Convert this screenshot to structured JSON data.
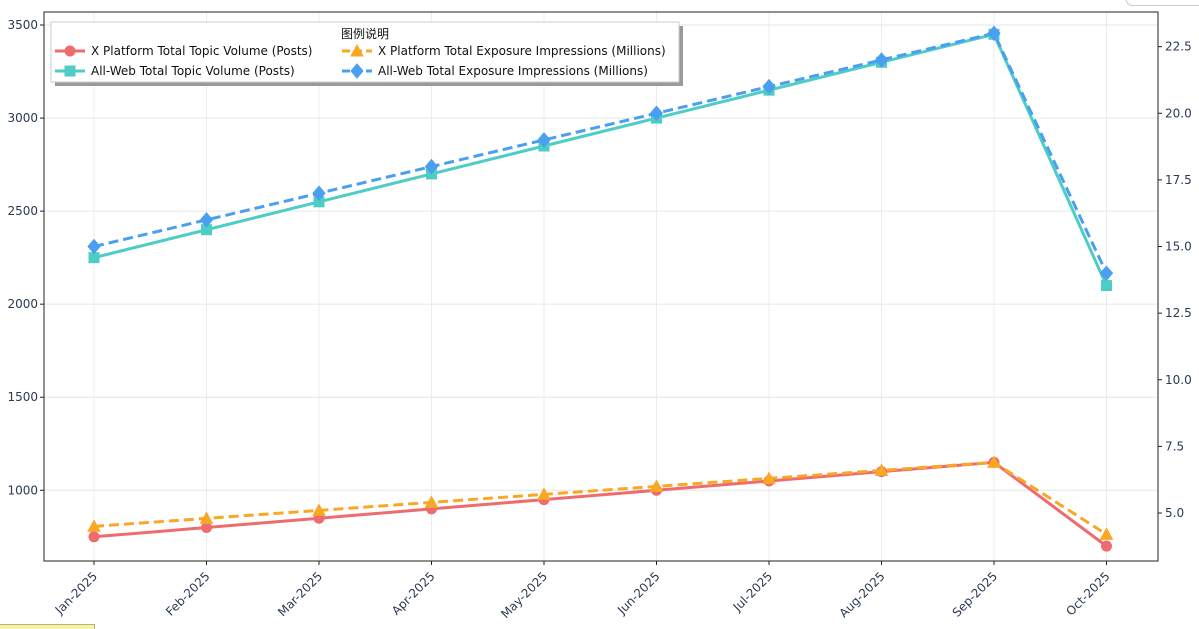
{
  "chart_data": {
    "type": "line",
    "legend_title": "图例说明",
    "categories": [
      "Jan-2025",
      "Feb-2025",
      "Mar-2025",
      "Apr-2025",
      "May-2025",
      "Jun-2025",
      "Jul-2025",
      "Aug-2025",
      "Sep-2025",
      "Oct-2025"
    ],
    "left_axis": {
      "ylim": [
        620,
        3570
      ],
      "ticks": [
        1000,
        1500,
        2000,
        2500,
        3000,
        3500
      ]
    },
    "right_axis": {
      "ylim": [
        3.2,
        23.8
      ],
      "ticks": [
        "5.0",
        "7.5",
        "10.0",
        "12.5",
        "15.0",
        "17.5",
        "20.0",
        "22.5"
      ]
    },
    "series": [
      {
        "name": "X Platform Total Topic Volume (Posts)",
        "axis": "left",
        "color": "#ee6b6e",
        "style": "solid",
        "marker": "circle",
        "values": [
          750,
          800,
          850,
          900,
          950,
          1000,
          1050,
          1100,
          1150,
          700
        ]
      },
      {
        "name": "All-Web Total Topic Volume (Posts)",
        "axis": "left",
        "color": "#4ecdc4",
        "style": "solid",
        "marker": "square",
        "values": [
          2250,
          2400,
          2550,
          2700,
          2850,
          3000,
          3150,
          3300,
          3450,
          2100
        ]
      },
      {
        "name": "X Platform Total Exposure Impressions (Millions)",
        "axis": "right",
        "color": "#f9a826",
        "style": "dashed",
        "marker": "triangle",
        "values": [
          4.5,
          4.8,
          5.1,
          5.4,
          5.7,
          6.0,
          6.3,
          6.6,
          6.9,
          4.2
        ]
      },
      {
        "name": "All-Web Total Exposure Impressions (Millions)",
        "axis": "right",
        "color": "#4a9ff0",
        "style": "dashed",
        "marker": "diamond",
        "values": [
          15.0,
          16.0,
          17.0,
          18.0,
          19.0,
          20.0,
          21.0,
          22.0,
          23.0,
          14.0
        ]
      }
    ],
    "legend_order": [
      0,
      2,
      1,
      3
    ],
    "grid": true,
    "legend_position": "top-left"
  }
}
